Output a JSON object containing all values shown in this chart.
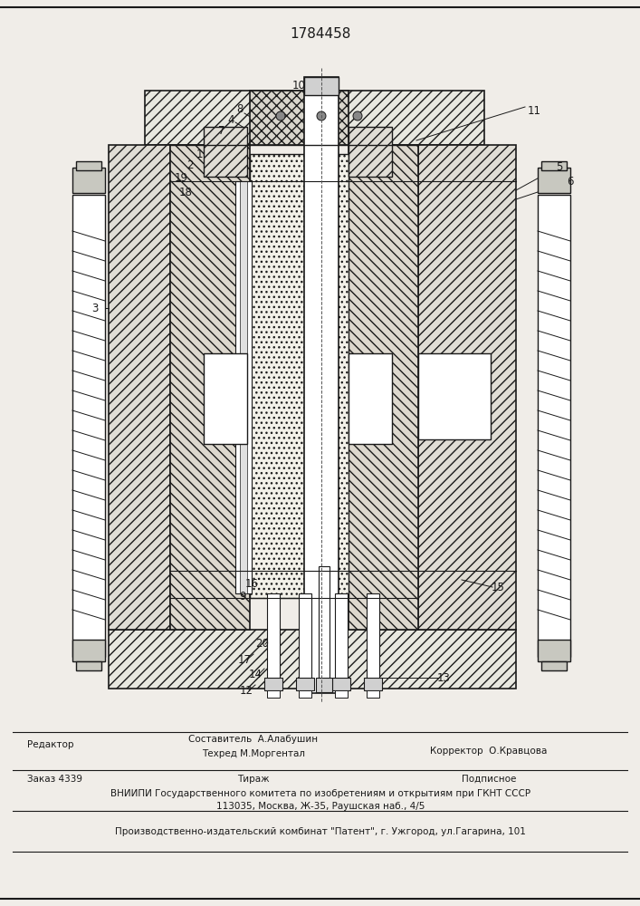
{
  "patent_number": "1784458",
  "bg_color": "#f0ede8",
  "line_color": "#1a1a1a",
  "footer": {
    "editor": "Редактор",
    "compiler_label": "Составитель  А.Алабушин",
    "techred_label": "Техред М.Моргентал",
    "corrector_label": "Корректор  О.Кравцова",
    "order": "Заказ 4339",
    "tirazh": "Тираж",
    "podpisnoe": "Подписное",
    "vniipи": "ВНИИПИ Государственного комитета по изобретениям и открытиям при ГКНТ СССР",
    "address": "113035, Москва, Ж-35, Раушская наб., 4/5",
    "production": "Производственно-издательский комбинат \"Патент\", г. Ужгород, ул.Гагарина, 101"
  }
}
